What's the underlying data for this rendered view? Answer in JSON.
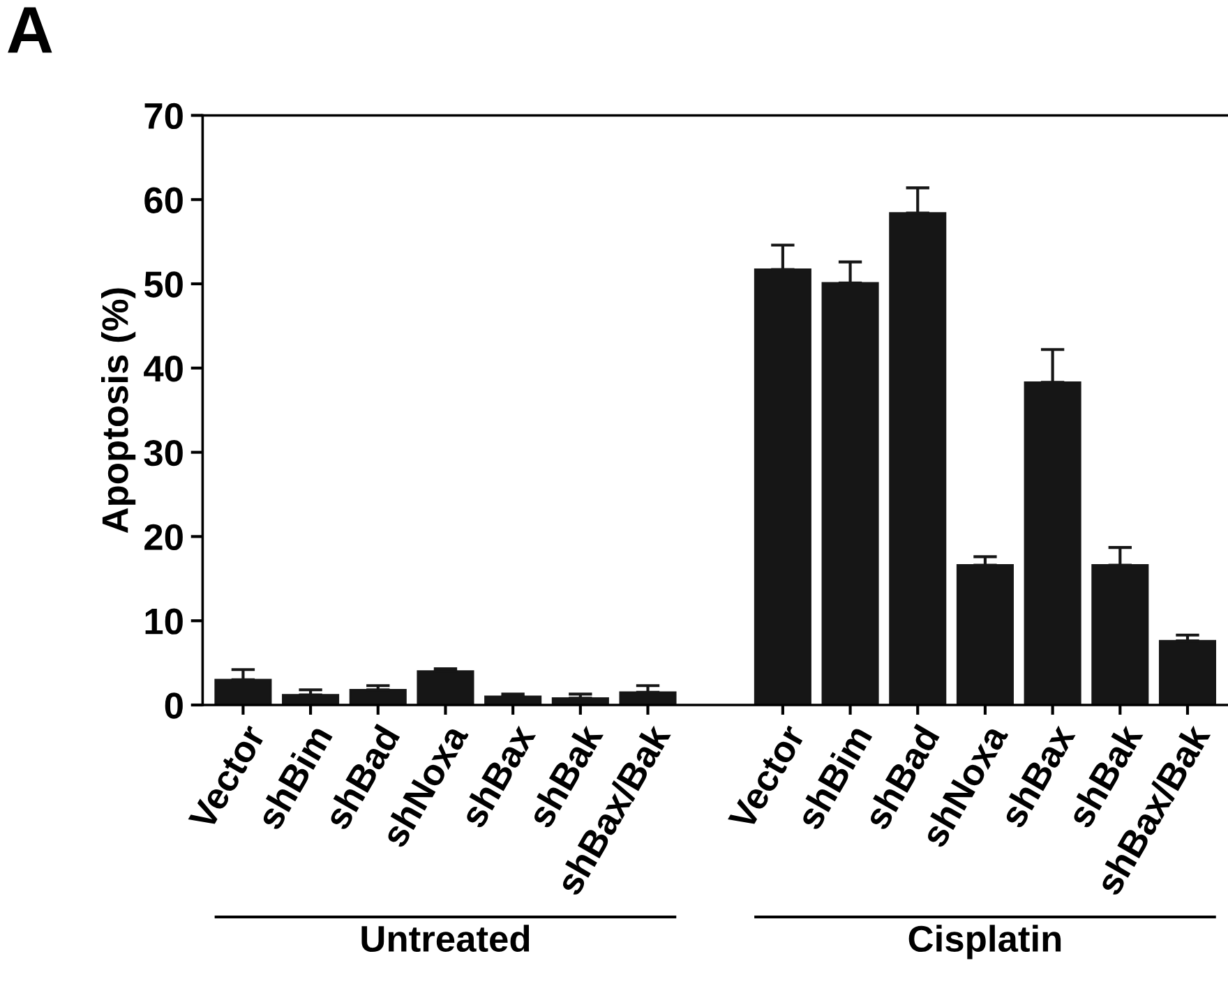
{
  "chart_data": {
    "type": "bar",
    "ylabel": "Apoptosis (%)",
    "categories": [
      "Vector",
      "shBim",
      "shBad",
      "shNoxa",
      "shBax",
      "shBak",
      "shBax/Bak",
      null,
      "Vector",
      "shBim",
      "shBad",
      "shNoxa",
      "shBax",
      "shBak",
      "shBax/Bak"
    ],
    "values": [
      3.0,
      1.2,
      1.8,
      4.0,
      1.0,
      0.8,
      1.5,
      null,
      51.7,
      50.1,
      58.4,
      16.6,
      38.3,
      16.6,
      7.6
    ],
    "errors": [
      [
        3.0,
        4.2
      ],
      [
        1.2,
        1.8
      ],
      [
        1.8,
        2.3
      ],
      [
        4.0,
        4.3
      ],
      [
        1.0,
        1.3
      ],
      [
        0.8,
        1.3
      ],
      [
        1.5,
        2.3
      ],
      null,
      [
        51.7,
        54.6
      ],
      [
        50.1,
        52.6
      ],
      [
        58.4,
        61.4
      ],
      [
        16.6,
        17.6
      ],
      [
        38.3,
        42.2
      ],
      [
        16.6,
        18.7
      ],
      [
        7.6,
        8.3
      ]
    ],
    "color": "#161616",
    "ylim": [
      0,
      70
    ],
    "yticks": [
      0,
      10,
      20,
      30,
      40,
      50,
      60,
      70
    ],
    "grid": false,
    "legend": false,
    "annotations": [
      "A",
      "Untreated",
      "Cisplatin"
    ]
  }
}
